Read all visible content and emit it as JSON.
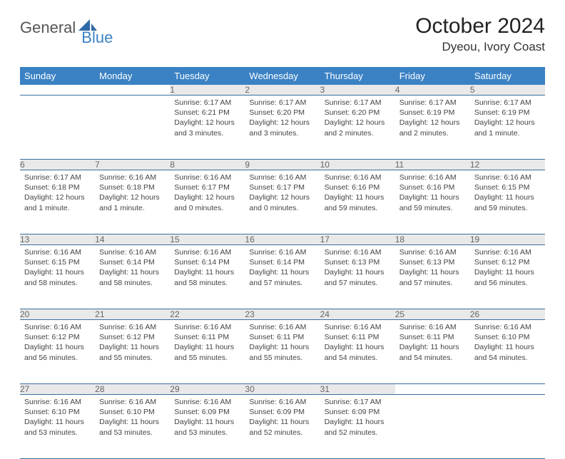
{
  "logo": {
    "part1": "General",
    "part2": "Blue"
  },
  "title": "October 2024",
  "location": "Dyeou, Ivory Coast",
  "colors": {
    "header_bg": "#3b82c4",
    "header_fg": "#ffffff",
    "daynum_bg": "#e9e9e9",
    "daynum_fg": "#666666",
    "row_divider": "#3b6ea0",
    "body_text": "#444444",
    "logo_gray": "#555555",
    "logo_blue": "#3b82c4"
  },
  "typography": {
    "title_fontsize": 30,
    "location_fontsize": 17,
    "dayheader_fontsize": 13,
    "daynum_fontsize": 12,
    "body_fontsize": 10.5
  },
  "day_headers": [
    "Sunday",
    "Monday",
    "Tuesday",
    "Wednesday",
    "Thursday",
    "Friday",
    "Saturday"
  ],
  "weeks": [
    [
      {
        "num": "",
        "sunrise": "",
        "sunset": "",
        "daylight": ""
      },
      {
        "num": "",
        "sunrise": "",
        "sunset": "",
        "daylight": ""
      },
      {
        "num": "1",
        "sunrise": "Sunrise: 6:17 AM",
        "sunset": "Sunset: 6:21 PM",
        "daylight": "Daylight: 12 hours and 3 minutes."
      },
      {
        "num": "2",
        "sunrise": "Sunrise: 6:17 AM",
        "sunset": "Sunset: 6:20 PM",
        "daylight": "Daylight: 12 hours and 3 minutes."
      },
      {
        "num": "3",
        "sunrise": "Sunrise: 6:17 AM",
        "sunset": "Sunset: 6:20 PM",
        "daylight": "Daylight: 12 hours and 2 minutes."
      },
      {
        "num": "4",
        "sunrise": "Sunrise: 6:17 AM",
        "sunset": "Sunset: 6:19 PM",
        "daylight": "Daylight: 12 hours and 2 minutes."
      },
      {
        "num": "5",
        "sunrise": "Sunrise: 6:17 AM",
        "sunset": "Sunset: 6:19 PM",
        "daylight": "Daylight: 12 hours and 1 minute."
      }
    ],
    [
      {
        "num": "6",
        "sunrise": "Sunrise: 6:17 AM",
        "sunset": "Sunset: 6:18 PM",
        "daylight": "Daylight: 12 hours and 1 minute."
      },
      {
        "num": "7",
        "sunrise": "Sunrise: 6:16 AM",
        "sunset": "Sunset: 6:18 PM",
        "daylight": "Daylight: 12 hours and 1 minute."
      },
      {
        "num": "8",
        "sunrise": "Sunrise: 6:16 AM",
        "sunset": "Sunset: 6:17 PM",
        "daylight": "Daylight: 12 hours and 0 minutes."
      },
      {
        "num": "9",
        "sunrise": "Sunrise: 6:16 AM",
        "sunset": "Sunset: 6:17 PM",
        "daylight": "Daylight: 12 hours and 0 minutes."
      },
      {
        "num": "10",
        "sunrise": "Sunrise: 6:16 AM",
        "sunset": "Sunset: 6:16 PM",
        "daylight": "Daylight: 11 hours and 59 minutes."
      },
      {
        "num": "11",
        "sunrise": "Sunrise: 6:16 AM",
        "sunset": "Sunset: 6:16 PM",
        "daylight": "Daylight: 11 hours and 59 minutes."
      },
      {
        "num": "12",
        "sunrise": "Sunrise: 6:16 AM",
        "sunset": "Sunset: 6:15 PM",
        "daylight": "Daylight: 11 hours and 59 minutes."
      }
    ],
    [
      {
        "num": "13",
        "sunrise": "Sunrise: 6:16 AM",
        "sunset": "Sunset: 6:15 PM",
        "daylight": "Daylight: 11 hours and 58 minutes."
      },
      {
        "num": "14",
        "sunrise": "Sunrise: 6:16 AM",
        "sunset": "Sunset: 6:14 PM",
        "daylight": "Daylight: 11 hours and 58 minutes."
      },
      {
        "num": "15",
        "sunrise": "Sunrise: 6:16 AM",
        "sunset": "Sunset: 6:14 PM",
        "daylight": "Daylight: 11 hours and 58 minutes."
      },
      {
        "num": "16",
        "sunrise": "Sunrise: 6:16 AM",
        "sunset": "Sunset: 6:14 PM",
        "daylight": "Daylight: 11 hours and 57 minutes."
      },
      {
        "num": "17",
        "sunrise": "Sunrise: 6:16 AM",
        "sunset": "Sunset: 6:13 PM",
        "daylight": "Daylight: 11 hours and 57 minutes."
      },
      {
        "num": "18",
        "sunrise": "Sunrise: 6:16 AM",
        "sunset": "Sunset: 6:13 PM",
        "daylight": "Daylight: 11 hours and 57 minutes."
      },
      {
        "num": "19",
        "sunrise": "Sunrise: 6:16 AM",
        "sunset": "Sunset: 6:12 PM",
        "daylight": "Daylight: 11 hours and 56 minutes."
      }
    ],
    [
      {
        "num": "20",
        "sunrise": "Sunrise: 6:16 AM",
        "sunset": "Sunset: 6:12 PM",
        "daylight": "Daylight: 11 hours and 56 minutes."
      },
      {
        "num": "21",
        "sunrise": "Sunrise: 6:16 AM",
        "sunset": "Sunset: 6:12 PM",
        "daylight": "Daylight: 11 hours and 55 minutes."
      },
      {
        "num": "22",
        "sunrise": "Sunrise: 6:16 AM",
        "sunset": "Sunset: 6:11 PM",
        "daylight": "Daylight: 11 hours and 55 minutes."
      },
      {
        "num": "23",
        "sunrise": "Sunrise: 6:16 AM",
        "sunset": "Sunset: 6:11 PM",
        "daylight": "Daylight: 11 hours and 55 minutes."
      },
      {
        "num": "24",
        "sunrise": "Sunrise: 6:16 AM",
        "sunset": "Sunset: 6:11 PM",
        "daylight": "Daylight: 11 hours and 54 minutes."
      },
      {
        "num": "25",
        "sunrise": "Sunrise: 6:16 AM",
        "sunset": "Sunset: 6:11 PM",
        "daylight": "Daylight: 11 hours and 54 minutes."
      },
      {
        "num": "26",
        "sunrise": "Sunrise: 6:16 AM",
        "sunset": "Sunset: 6:10 PM",
        "daylight": "Daylight: 11 hours and 54 minutes."
      }
    ],
    [
      {
        "num": "27",
        "sunrise": "Sunrise: 6:16 AM",
        "sunset": "Sunset: 6:10 PM",
        "daylight": "Daylight: 11 hours and 53 minutes."
      },
      {
        "num": "28",
        "sunrise": "Sunrise: 6:16 AM",
        "sunset": "Sunset: 6:10 PM",
        "daylight": "Daylight: 11 hours and 53 minutes."
      },
      {
        "num": "29",
        "sunrise": "Sunrise: 6:16 AM",
        "sunset": "Sunset: 6:09 PM",
        "daylight": "Daylight: 11 hours and 53 minutes."
      },
      {
        "num": "30",
        "sunrise": "Sunrise: 6:16 AM",
        "sunset": "Sunset: 6:09 PM",
        "daylight": "Daylight: 11 hours and 52 minutes."
      },
      {
        "num": "31",
        "sunrise": "Sunrise: 6:17 AM",
        "sunset": "Sunset: 6:09 PM",
        "daylight": "Daylight: 11 hours and 52 minutes."
      },
      {
        "num": "",
        "sunrise": "",
        "sunset": "",
        "daylight": ""
      },
      {
        "num": "",
        "sunrise": "",
        "sunset": "",
        "daylight": ""
      }
    ]
  ]
}
